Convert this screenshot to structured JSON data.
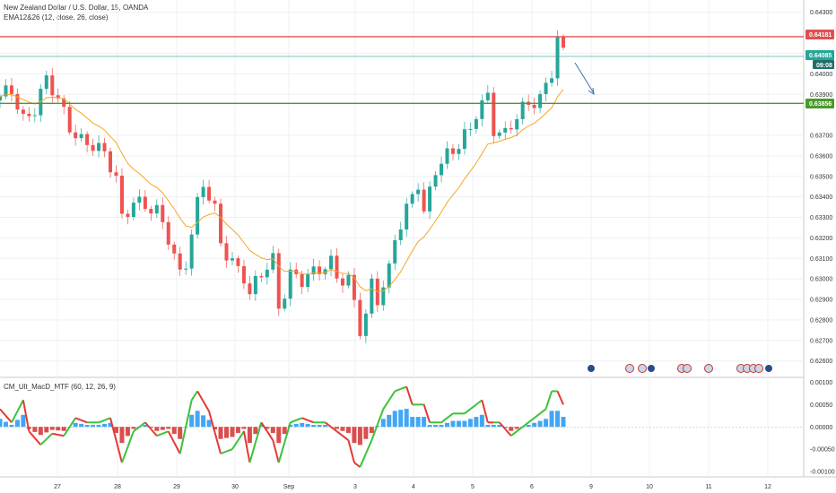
{
  "header": {
    "title": "New Zealand Dollar / U.S. Dollar, 15, OANDA",
    "indicator": "EMA12&26 (12, close, 26, close)",
    "macd_label": "CM_Ult_MacD_MTF (60, 12, 26, 9)"
  },
  "price_axis": {
    "ticks": [
      "0.64300",
      "0.64100",
      "0.64000",
      "0.63900",
      "0.63700",
      "0.63600",
      "0.63500",
      "0.63400",
      "0.63300",
      "0.63200",
      "0.63100",
      "0.63000",
      "0.62900",
      "0.62800",
      "0.62700",
      "0.62600"
    ]
  },
  "macd_axis": {
    "ticks": [
      "0.00100",
      "0.00050",
      "0.00000",
      "-0.00050",
      "-0.00100"
    ]
  },
  "time_axis": {
    "labels": [
      "27",
      "28",
      "29",
      "30",
      "Sep",
      "3",
      "4",
      "5",
      "6",
      "9",
      "10",
      "11",
      "12"
    ]
  },
  "price_tags": {
    "resistance": "0.64181",
    "current": "0.64085",
    "countdown": "09:08",
    "support": "0.63856"
  },
  "colors": {
    "up": "#26a69a",
    "down": "#ef5350",
    "ema": "#f5a623",
    "resistance": "#e05050",
    "support": "#4a9a2a",
    "current": "#26a69a",
    "arrow": "#3c6db4",
    "macd_up": "#3cc23c",
    "macd_down": "#e53935",
    "hist_pos": "#2196f3",
    "hist_neg": "#d32f2f"
  },
  "chart_data": {
    "type": "candlestick",
    "title": "New Zealand Dollar / U.S. Dollar, 15, OANDA",
    "y_range": [
      0.6252,
      0.6436
    ],
    "x_labels": [
      "27",
      "28",
      "29",
      "30",
      "Sep",
      "3",
      "4",
      "5",
      "6",
      "9",
      "10",
      "11",
      "12"
    ],
    "price_path": [
      [
        0,
        0.6387
      ],
      [
        2,
        0.6392
      ],
      [
        4,
        0.6379
      ],
      [
        6,
        0.6384
      ],
      [
        8,
        0.6396
      ],
      [
        10,
        0.6386
      ],
      [
        12,
        0.6375
      ],
      [
        14,
        0.6369
      ],
      [
        16,
        0.6365
      ],
      [
        18,
        0.6359
      ],
      [
        20,
        0.6349
      ],
      [
        21,
        0.633
      ],
      [
        23,
        0.634
      ],
      [
        25,
        0.6335
      ],
      [
        27,
        0.6331
      ],
      [
        29,
        0.632
      ],
      [
        31,
        0.6304
      ],
      [
        32,
        0.631
      ],
      [
        34,
        0.6336
      ],
      [
        35,
        0.6345
      ],
      [
        37,
        0.6332
      ],
      [
        38,
        0.6317
      ],
      [
        40,
        0.631
      ],
      [
        42,
        0.6302
      ],
      [
        43,
        0.6292
      ],
      [
        45,
        0.6301
      ],
      [
        47,
        0.6309
      ],
      [
        48,
        0.6287
      ],
      [
        50,
        0.6304
      ],
      [
        52,
        0.6299
      ],
      [
        54,
        0.6301
      ],
      [
        56,
        0.6306
      ],
      [
        57,
        0.6309
      ],
      [
        58,
        0.6303
      ],
      [
        60,
        0.63
      ],
      [
        61,
        0.6288
      ],
      [
        62,
        0.6274
      ],
      [
        63,
        0.628
      ],
      [
        64,
        0.6296
      ],
      [
        65,
        0.629
      ],
      [
        67,
        0.6306
      ],
      [
        68,
        0.6322
      ],
      [
        70,
        0.6333
      ],
      [
        72,
        0.6345
      ],
      [
        73,
        0.633
      ],
      [
        75,
        0.6355
      ],
      [
        77,
        0.6362
      ],
      [
        79,
        0.6365
      ],
      [
        81,
        0.6371
      ],
      [
        82,
        0.638
      ],
      [
        84,
        0.639
      ],
      [
        85,
        0.6375
      ],
      [
        87,
        0.6371
      ],
      [
        89,
        0.6378
      ],
      [
        91,
        0.6384
      ],
      [
        93,
        0.6389
      ],
      [
        95,
        0.6403
      ],
      [
        96,
        0.6418
      ],
      [
        97,
        0.6409
      ]
    ],
    "candles_shown": 98,
    "horizontal_levels": [
      {
        "label": "0.64181",
        "value": 0.64181
      },
      {
        "label": "0.63856",
        "value": 0.63856
      },
      {
        "label": "0.64085",
        "value": 0.64085
      }
    ],
    "macd": {
      "name": "CM_Ult_MacD_MTF (60, 12, 26, 9)",
      "y_range": [
        -0.00108,
        0.00105
      ],
      "signal_path": [
        [
          0,
          0.0004
        ],
        [
          2,
          0.0001
        ],
        [
          4,
          0.0006
        ],
        [
          5,
          -0.0001
        ],
        [
          7,
          -0.0004
        ],
        [
          9,
          -0.00015
        ],
        [
          11,
          -0.0002
        ],
        [
          13,
          0.0002
        ],
        [
          15,
          0.0001
        ],
        [
          17,
          0.0001
        ],
        [
          19,
          0.0002
        ],
        [
          21,
          -0.0008
        ],
        [
          23,
          -0.0001
        ],
        [
          25,
          0.0001
        ],
        [
          27,
          -0.0002
        ],
        [
          29,
          -0.0001
        ],
        [
          31,
          -0.0006
        ],
        [
          33,
          0.0006
        ],
        [
          34,
          0.0008
        ],
        [
          36,
          0.00035
        ],
        [
          38,
          -0.0006
        ],
        [
          40,
          -0.0005
        ],
        [
          42,
          -0.0001
        ],
        [
          43,
          -0.0008
        ],
        [
          45,
          0.0001
        ],
        [
          47,
          -0.0003
        ],
        [
          48,
          -0.0008
        ],
        [
          50,
          0.0001
        ],
        [
          52,
          0.0002
        ],
        [
          54,
          0.0001
        ],
        [
          56,
          0.0001
        ],
        [
          58,
          -0.0001
        ],
        [
          60,
          -0.0003
        ],
        [
          61,
          -0.0008
        ],
        [
          62,
          -0.0009
        ],
        [
          64,
          -0.0003
        ],
        [
          66,
          0.0004
        ],
        [
          68,
          0.0008
        ],
        [
          70,
          0.0009
        ],
        [
          71,
          0.0005
        ],
        [
          73,
          0.0005
        ],
        [
          74,
          0.0001
        ],
        [
          76,
          0.0001
        ],
        [
          78,
          0.0003
        ],
        [
          80,
          0.0003
        ],
        [
          81,
          0.0004
        ],
        [
          83,
          0.0006
        ],
        [
          84,
          0.0001
        ],
        [
          86,
          0.0001
        ],
        [
          88,
          -0.0002
        ],
        [
          89,
          -0.0001
        ],
        [
          91,
          0.0001
        ],
        [
          92,
          0.0002
        ],
        [
          94,
          0.0004
        ],
        [
          95,
          0.0008
        ],
        [
          96,
          0.0008
        ],
        [
          97,
          0.0005
        ]
      ]
    }
  }
}
